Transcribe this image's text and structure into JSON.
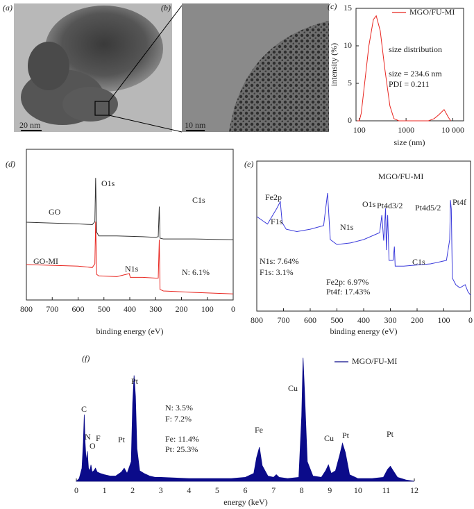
{
  "images": [
    {
      "panel": "(a)",
      "scale_bar": "20 nm"
    },
    {
      "panel": "(b)",
      "scale_bar": "10 nm"
    }
  ],
  "chart_data": [
    {
      "type": "line",
      "panel": "(c)",
      "x_label": "size (nm)",
      "y_label": "intensity (%)",
      "x_log": true,
      "xlim": [
        85,
        17000
      ],
      "xticks": [
        100,
        1000,
        {
          "value": 10000,
          "label": "10 000"
        }
      ],
      "ylim": [
        0,
        15
      ],
      "yticks": [
        0,
        5,
        10,
        15
      ],
      "legend": "upper right",
      "series": [
        {
          "name": "MGO/FU-MI",
          "color": "#e8251f",
          "x": [
            90,
            100,
            110,
            130,
            160,
            200,
            230,
            280,
            350,
            450,
            550,
            700,
            1000,
            2000,
            3000,
            4000,
            5000,
            6500,
            8000,
            9000
          ],
          "values": [
            0,
            0,
            1,
            5,
            10,
            13.5,
            14,
            12,
            7,
            2,
            0.3,
            0,
            0,
            0,
            0,
            0.3,
            0.8,
            1.5,
            0.5,
            0
          ]
        }
      ],
      "annotations": [
        {
          "text": "size distribution",
          "color": "#222222"
        },
        {
          "text": "size = 234.6 nm",
          "color": "#e8251f"
        },
        {
          "text": "PDI = 0.211",
          "color": "#e8251f"
        }
      ]
    },
    {
      "type": "line",
      "panel": "(d)",
      "x_label": "binding energy (eV)",
      "xlim": [
        800,
        0
      ],
      "xticks": [
        800,
        700,
        600,
        500,
        400,
        300,
        200,
        100,
        0
      ],
      "ylim": [
        0,
        100
      ],
      "series": [
        {
          "name": "GO",
          "color": "#333333",
          "x": [
            800,
            700,
            600,
            545,
            535,
            532,
            528,
            520,
            450,
            350,
            300,
            290,
            286,
            283,
            270,
            150,
            0
          ],
          "values": [
            51.6,
            51,
            50.5,
            50,
            52,
            81,
            45,
            42.5,
            42.5,
            42,
            41.5,
            42,
            62,
            41,
            40.5,
            40.5,
            40
          ]
        },
        {
          "name": "GO-MI",
          "color": "#e8251f",
          "x": [
            800,
            700,
            600,
            545,
            535,
            532,
            528,
            520,
            450,
            402,
            398,
            350,
            300,
            290,
            286,
            283,
            270,
            150,
            0
          ],
          "values": [
            23.5,
            23,
            22.5,
            21.5,
            24,
            52,
            17,
            16,
            15.5,
            17.5,
            15,
            15,
            14.5,
            14.5,
            40,
            7,
            6,
            5,
            4
          ]
        }
      ],
      "annotations": [
        {
          "text": "O1s",
          "color": "#222222"
        },
        {
          "text": "C1s",
          "color": "#222222"
        },
        {
          "text": "N1s",
          "color": "#222222"
        },
        {
          "text": "N: 6.1%",
          "color": "#222222"
        }
      ]
    },
    {
      "type": "line",
      "panel": "(e)",
      "x_label": "binding energy (eV)",
      "xlim": [
        800,
        0
      ],
      "xticks": [
        800,
        700,
        600,
        500,
        400,
        300,
        200,
        100,
        0
      ],
      "ylim": [
        0,
        100
      ],
      "legend": "upper center",
      "series": [
        {
          "name": "MGO/FU-MI",
          "color": "#3a3adb",
          "x": [
            800,
            760,
            725,
            712,
            705,
            690,
            650,
            600,
            550,
            535,
            525,
            500,
            450,
            400,
            340,
            332,
            325,
            318,
            315,
            310,
            305,
            290,
            285,
            282,
            250,
            150,
            90,
            78,
            75,
            72,
            68,
            55,
            40,
            20,
            10,
            0
          ],
          "values": [
            63,
            58,
            68.5,
            73,
            59,
            54.6,
            53,
            54.6,
            57,
            78.7,
            47.7,
            44.4,
            45.4,
            47.7,
            52.3,
            64,
            47,
            68.5,
            40.7,
            64,
            33.8,
            33.8,
            43,
            30,
            30,
            31.5,
            33.8,
            47.7,
            74,
            68,
            22,
            17.6,
            15.5,
            17.6,
            13,
            10.6
          ]
        }
      ],
      "annotations": [
        {
          "text": "Fe2p",
          "color": "#222222"
        },
        {
          "text": "F1s",
          "color": "#222222"
        },
        {
          "text": "O1s",
          "color": "#222222"
        },
        {
          "text": "N1s",
          "color": "#222222"
        },
        {
          "text": "Pt4d3/2",
          "color": "#222222"
        },
        {
          "text": "Pt4d5/2",
          "color": "#222222"
        },
        {
          "text": "C1s",
          "color": "#222222"
        },
        {
          "text": "Pt4f",
          "color": "#222222"
        },
        {
          "text": "N1s: 7.64%",
          "color": "#222222"
        },
        {
          "text": "F1s: 3.1%",
          "color": "#222222"
        },
        {
          "text": "Fe2p: 6.97%",
          "color": "#222222"
        },
        {
          "text": "Pt4f: 17.43%",
          "color": "#222222"
        }
      ]
    },
    {
      "type": "area",
      "panel": "(f)",
      "x_label": "energy (keV)",
      "xlim": [
        0,
        12
      ],
      "xticks": [
        0,
        1,
        2,
        3,
        4,
        5,
        6,
        7,
        8,
        9,
        10,
        11,
        12
      ],
      "ylim": [
        0,
        100
      ],
      "legend": "upper right",
      "series": [
        {
          "name": "MGO/FU-MI",
          "color": "#0b0b8a",
          "x": [
            0,
            0.1,
            0.2,
            0.25,
            0.28,
            0.31,
            0.35,
            0.39,
            0.43,
            0.48,
            0.52,
            0.56,
            0.62,
            0.68,
            0.74,
            0.85,
            1.0,
            1.2,
            1.4,
            1.6,
            1.7,
            1.8,
            1.95,
            2.0,
            2.05,
            2.1,
            2.15,
            2.25,
            2.4,
            2.6,
            2.8,
            3.0,
            3.5,
            4.0,
            4.5,
            5.0,
            5.5,
            6.0,
            6.3,
            6.4,
            6.5,
            6.6,
            6.8,
            7.0,
            7.1,
            7.2,
            7.5,
            7.9,
            8.0,
            8.05,
            8.1,
            8.2,
            8.4,
            8.7,
            8.85,
            8.95,
            9.05,
            9.2,
            9.35,
            9.45,
            9.55,
            9.7,
            10.0,
            10.5,
            10.9,
            11.05,
            11.15,
            11.25,
            11.4,
            11.7,
            12.0
          ],
          "values": [
            0,
            2,
            10,
            30,
            51,
            30,
            15,
            23,
            10,
            8,
            12.5,
            7,
            8,
            10,
            7,
            6,
            5,
            4,
            4,
            7,
            10,
            6,
            15,
            60,
            81,
            65,
            25,
            8,
            6,
            4,
            3,
            3,
            2.5,
            2,
            2,
            2,
            2,
            3,
            6,
            18,
            26,
            12,
            4,
            3,
            5,
            3,
            2,
            3,
            50,
            94.5,
            70,
            15,
            4,
            3,
            8,
            12.5,
            6,
            8,
            20,
            29,
            22,
            5,
            2,
            2,
            3,
            9,
            11.5,
            8,
            3,
            1,
            0
          ]
        }
      ],
      "annotations": [
        {
          "text": "C",
          "color": "#222222"
        },
        {
          "text": "N",
          "color": "#222222"
        },
        {
          "text": "O",
          "color": "#222222"
        },
        {
          "text": "F",
          "color": "#222222"
        },
        {
          "text": "Pt",
          "color": "#222222"
        },
        {
          "text": "Pt",
          "color": "#222222"
        },
        {
          "text": "Fe",
          "color": "#222222"
        },
        {
          "text": "Cu",
          "color": "#222222"
        },
        {
          "text": "Cu",
          "color": "#222222"
        },
        {
          "text": "Pt",
          "color": "#222222"
        },
        {
          "text": "Pt",
          "color": "#222222"
        },
        {
          "text": "N: 3.5%",
          "color": "#3a3adb"
        },
        {
          "text": "F: 7.2%",
          "color": "#3a3adb"
        },
        {
          "text": "Fe: 11.4%",
          "color": "#3a3adb"
        },
        {
          "text": "Pt: 25.3%",
          "color": "#3a3adb"
        }
      ]
    }
  ]
}
